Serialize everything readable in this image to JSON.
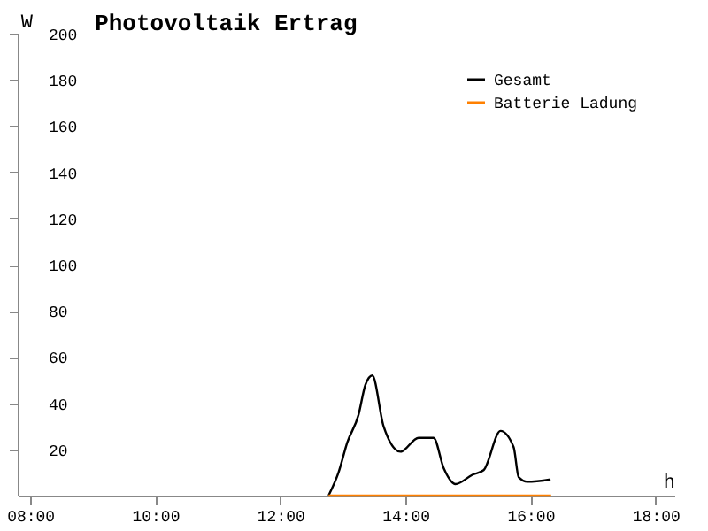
{
  "chart_data": {
    "type": "line",
    "title": "Photovoltaik Ertrag",
    "xlabel": "h",
    "ylabel": "W",
    "xlim": [
      7.8,
      18.3
    ],
    "ylim": [
      0,
      200
    ],
    "xticks": [
      {
        "value": 8,
        "label": "08:00"
      },
      {
        "value": 10,
        "label": "10:00"
      },
      {
        "value": 12,
        "label": "12:00"
      },
      {
        "value": 14,
        "label": "14:00"
      },
      {
        "value": 16,
        "label": "16:00"
      },
      {
        "value": 18,
        "label": "18:00"
      }
    ],
    "yticks": [
      20,
      40,
      60,
      80,
      100,
      120,
      140,
      160,
      180,
      200
    ],
    "grid": false,
    "legend": "top right",
    "marker": "none",
    "line_style": "solid",
    "series": [
      {
        "name": "Gesamt",
        "color": "#000000",
        "x": [
          12.77,
          12.93,
          13.07,
          13.25,
          13.36,
          13.47,
          13.65,
          13.92,
          14.21,
          14.45,
          14.61,
          14.8,
          15.07,
          15.25,
          15.52,
          15.73,
          15.81,
          15.95,
          16.32
        ],
        "values": [
          0,
          10,
          23,
          35,
          48,
          52,
          30,
          19,
          25,
          25,
          12,
          5,
          9,
          11,
          28,
          21,
          8,
          6,
          7
        ]
      },
      {
        "name": "Batterie Ladung",
        "color": "#ff8000",
        "x": [
          12.77,
          16.33
        ],
        "values": [
          0,
          0
        ]
      }
    ]
  }
}
